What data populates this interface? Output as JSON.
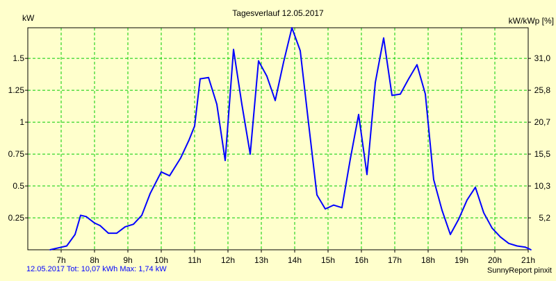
{
  "chart_data": {
    "type": "line",
    "title": "Tagesverlauf 12.05.2017",
    "ylabel_left": "kW",
    "ylabel_right": "kW/kWp [%]",
    "x_start_hour": 6.0,
    "x_end_hour": 21.0,
    "ylim": [
      0,
      1.74
    ],
    "x_ticks": [
      "7h",
      "8h",
      "9h",
      "10h",
      "11h",
      "12h",
      "13h",
      "14h",
      "15h",
      "16h",
      "17h",
      "18h",
      "19h",
      "20h",
      "21h"
    ],
    "y_ticks_left": [
      "0.25",
      "0.5",
      "0.75",
      "1",
      "1.25",
      "1.5"
    ],
    "y_ticks_right": [
      "5,2",
      "10,3",
      "15,5",
      "20,7",
      "25,8",
      "31,0"
    ],
    "grid": true,
    "series": [
      {
        "color": "#0000ff",
        "x": [
          "06:40",
          "07:00",
          "07:10",
          "07:25",
          "07:35",
          "07:45",
          "08:00",
          "08:10",
          "08:25",
          "08:40",
          "08:55",
          "09:10",
          "09:25",
          "09:40",
          "10:00",
          "10:15",
          "10:35",
          "10:50",
          "11:00",
          "11:10",
          "11:25",
          "11:40",
          "11:55",
          "12:10",
          "12:25",
          "12:40",
          "12:55",
          "13:10",
          "13:25",
          "13:40",
          "13:55",
          "14:10",
          "14:25",
          "14:40",
          "14:55",
          "15:10",
          "15:25",
          "15:40",
          "15:55",
          "16:10",
          "16:25",
          "16:40",
          "16:55",
          "17:10",
          "17:25",
          "17:40",
          "17:55",
          "18:10",
          "18:25",
          "18:40",
          "18:55",
          "19:10",
          "19:25",
          "19:40",
          "19:55",
          "20:10",
          "20:25",
          "20:40",
          "20:55",
          "21:05"
        ],
        "values": [
          0.0,
          0.02,
          0.03,
          0.12,
          0.27,
          0.26,
          0.21,
          0.19,
          0.13,
          0.13,
          0.18,
          0.2,
          0.27,
          0.44,
          0.61,
          0.58,
          0.72,
          0.86,
          0.97,
          1.34,
          1.35,
          1.14,
          0.7,
          1.57,
          1.14,
          0.75,
          1.48,
          1.36,
          1.17,
          1.47,
          1.74,
          1.56,
          0.99,
          0.43,
          0.32,
          0.35,
          0.33,
          0.71,
          1.06,
          0.59,
          1.31,
          1.66,
          1.21,
          1.22,
          1.34,
          1.45,
          1.22,
          0.55,
          0.31,
          0.12,
          0.24,
          0.39,
          0.49,
          0.29,
          0.17,
          0.1,
          0.05,
          0.03,
          0.02,
          0.0
        ]
      }
    ]
  },
  "footer": {
    "summary": "12.05.2017 Tot: 10,07 kWh Max: 1,74 kW",
    "brand": "SunnyReport pinxit"
  },
  "colors": {
    "background": "#ffffcc",
    "grid": "#00cc00",
    "line": "#0000ff",
    "axis": "#000000"
  }
}
